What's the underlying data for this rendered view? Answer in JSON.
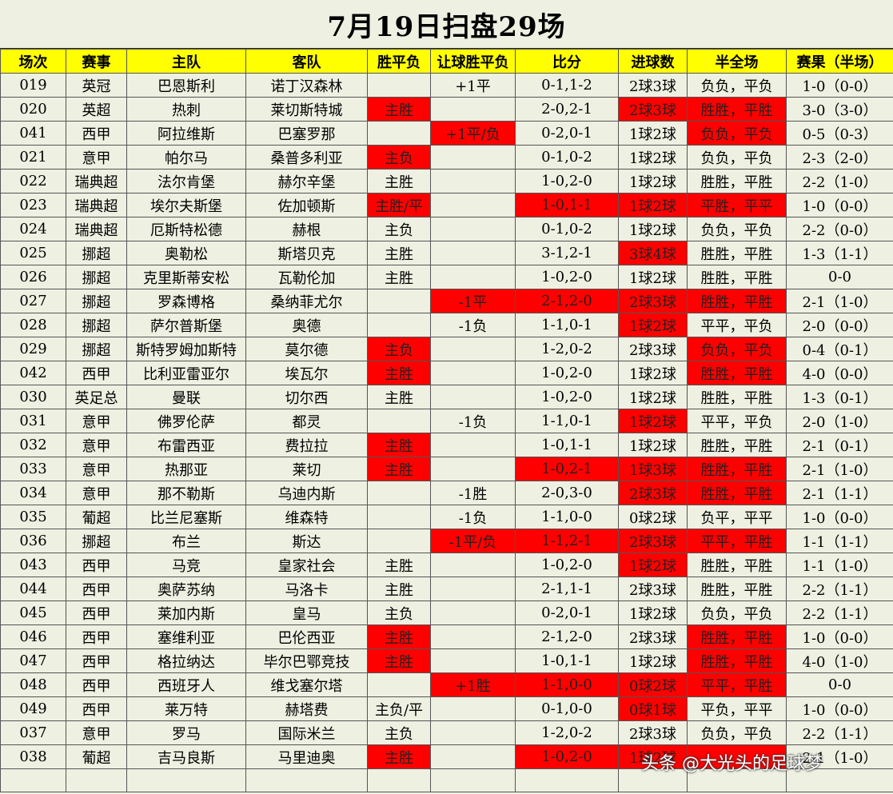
{
  "title": "7月19日扫盘29场",
  "headers": [
    "场次",
    "赛事",
    "主队",
    "客队",
    "胜平负",
    "让球胜平负",
    "比分",
    "进球数",
    "半全场",
    "赛果（半场）"
  ],
  "rows": [
    {
      "cells": [
        "019",
        "英冠",
        "巴恩斯利",
        "诺丁汉森林",
        "",
        "+1平",
        "0-1,1-2",
        "2球3球",
        "负负，平负",
        "1-0（0-0）"
      ],
      "red": []
    },
    {
      "cells": [
        "020",
        "英超",
        "热刺",
        "莱切斯特城",
        "主胜",
        "",
        "2-0,2-1",
        "2球3球",
        "胜胜，平胜",
        "3-0（3-0）"
      ],
      "red": [
        4,
        7,
        8
      ]
    },
    {
      "cells": [
        "041",
        "西甲",
        "阿拉维斯",
        "巴塞罗那",
        "",
        "+1平/负",
        "0-2,0-1",
        "1球2球",
        "负负，平负",
        "0-5（0-3）"
      ],
      "red": [
        5,
        8
      ]
    },
    {
      "cells": [
        "021",
        "意甲",
        "帕尔马",
        "桑普多利亚",
        "主负",
        "",
        "0-1,0-2",
        "1球2球",
        "负负，平负",
        "2-3（2-0）"
      ],
      "red": [
        4
      ]
    },
    {
      "cells": [
        "022",
        "瑞典超",
        "法尔肯堡",
        "赫尔辛堡",
        "主胜",
        "",
        "1-0,2-0",
        "1球2球",
        "胜胜，平胜",
        "2-2（1-0）"
      ],
      "red": []
    },
    {
      "cells": [
        "023",
        "瑞典超",
        "埃尔夫斯堡",
        "佐加顿斯",
        "主胜/平",
        "",
        "1-0,1-1",
        "1球2球",
        "平胜，平平",
        "1-0（0-0）"
      ],
      "red": [
        4,
        6,
        7,
        8
      ]
    },
    {
      "cells": [
        "024",
        "瑞典超",
        "厄斯特松德",
        "赫根",
        "主负",
        "",
        "0-1,0-2",
        "1球2球",
        "负负，平负",
        "2-2（0-0）"
      ],
      "red": []
    },
    {
      "cells": [
        "025",
        "挪超",
        "奥勒松",
        "斯塔贝克",
        "主胜",
        "",
        "3-1,2-1",
        "3球4球",
        "胜胜，平胜",
        "1-3（1-1）"
      ],
      "red": [
        7
      ]
    },
    {
      "cells": [
        "026",
        "挪超",
        "克里斯蒂安松",
        "瓦勒伦加",
        "主胜",
        "",
        "1-0,2-0",
        "1球2球",
        "胜胜，平胜",
        "0-0"
      ],
      "red": []
    },
    {
      "cells": [
        "027",
        "挪超",
        "罗森博格",
        "桑纳菲尤尔",
        "",
        "-1平",
        "2-1,2-0",
        "2球3球",
        "胜胜，平胜",
        "2-1（1-0）"
      ],
      "red": [
        5,
        6,
        7,
        8
      ]
    },
    {
      "cells": [
        "028",
        "挪超",
        "萨尔普斯堡",
        "奥德",
        "",
        "-1负",
        "1-1,0-1",
        "1球2球",
        "平平，平负",
        "2-0（0-0）"
      ],
      "red": [
        7
      ]
    },
    {
      "cells": [
        "029",
        "挪超",
        "斯特罗姆加斯特",
        "莫尔德",
        "主负",
        "",
        "1-2,0-2",
        "2球3球",
        "负负，平负",
        "0-4（0-1）"
      ],
      "red": [
        4,
        8
      ]
    },
    {
      "cells": [
        "042",
        "西甲",
        "比利亚雷亚尔",
        "埃瓦尔",
        "主胜",
        "",
        "1-0,2-0",
        "1球2球",
        "胜胜，平胜",
        "4-0（0-0）"
      ],
      "red": [
        4,
        8
      ]
    },
    {
      "cells": [
        "030",
        "英足总",
        "曼联",
        "切尔西",
        "主胜",
        "",
        "1-0,2-0",
        "1球2球",
        "胜胜，平胜",
        "1-3（0-1）"
      ],
      "red": []
    },
    {
      "cells": [
        "031",
        "意甲",
        "佛罗伦萨",
        "都灵",
        "",
        "-1负",
        "1-1,0-1",
        "1球2球",
        "平平，平负",
        "2-0（1-0）"
      ],
      "red": [
        7
      ]
    },
    {
      "cells": [
        "032",
        "意甲",
        "布雷西亚",
        "费拉拉",
        "主胜",
        "",
        "1-0,1-1",
        "1球2球",
        "胜胜，平胜",
        "2-1（0-1）"
      ],
      "red": [
        4
      ]
    },
    {
      "cells": [
        "033",
        "意甲",
        "热那亚",
        "莱切",
        "主胜",
        "",
        "1-0,2-1",
        "1球3球",
        "胜胜，平胜",
        "2-1（1-0）"
      ],
      "red": [
        4,
        6,
        7,
        8
      ]
    },
    {
      "cells": [
        "034",
        "意甲",
        "那不勒斯",
        "乌迪内斯",
        "",
        "-1胜",
        "2-0,3-0",
        "2球3球",
        "胜胜，平胜",
        "2-1（1-1）"
      ],
      "red": [
        7,
        8
      ]
    },
    {
      "cells": [
        "035",
        "葡超",
        "比兰尼塞斯",
        "维森特",
        "",
        "-1负",
        "1-1,0-0",
        "0球2球",
        "负平，平平",
        "1-0（0-0）"
      ],
      "red": []
    },
    {
      "cells": [
        "036",
        "挪超",
        "布兰",
        "斯达",
        "",
        "-1平/负",
        "1-1,2-1",
        "2球3球",
        "平平，平胜",
        "1-1（1-1）"
      ],
      "red": [
        5,
        6,
        7,
        8
      ]
    },
    {
      "cells": [
        "043",
        "西甲",
        "马竞",
        "皇家社会",
        "主胜",
        "",
        "1-0,2-0",
        "1球2球",
        "胜胜，平胜",
        "1-1（1-0）"
      ],
      "red": [
        7
      ]
    },
    {
      "cells": [
        "044",
        "西甲",
        "奥萨苏纳",
        "马洛卡",
        "主胜",
        "",
        "2-1,1-1",
        "2球3球",
        "胜胜，平胜",
        "2-2（1-1）"
      ],
      "red": []
    },
    {
      "cells": [
        "045",
        "西甲",
        "莱加内斯",
        "皇马",
        "主负",
        "",
        "0-2,0-1",
        "1球2球",
        "负负，平负",
        "2-2（1-1）"
      ],
      "red": []
    },
    {
      "cells": [
        "046",
        "西甲",
        "塞维利亚",
        "巴伦西亚",
        "主胜",
        "",
        "2-1,2-0",
        "2球3球",
        "胜胜，平胜",
        "1-0（0-0）"
      ],
      "red": [
        4,
        8
      ]
    },
    {
      "cells": [
        "047",
        "西甲",
        "格拉纳达",
        "毕尔巴鄂竞技",
        "主胜",
        "",
        "1-0,1-1",
        "1球2球",
        "胜胜，平胜",
        "4-0（1-0）"
      ],
      "red": [
        4,
        8
      ]
    },
    {
      "cells": [
        "048",
        "西甲",
        "西班牙人",
        "维戈塞尔塔",
        "",
        "+1胜",
        "1-1,0-0",
        "0球2球",
        "平平，平胜",
        "0-0"
      ],
      "red": [
        5,
        6,
        7,
        8
      ]
    },
    {
      "cells": [
        "049",
        "西甲",
        "莱万特",
        "赫塔费",
        "主负/平",
        "",
        "0-1,0-0",
        "0球1球",
        "平负，平平",
        "1-0（0-0）"
      ],
      "red": [
        7
      ]
    },
    {
      "cells": [
        "037",
        "意甲",
        "罗马",
        "国际米兰",
        "主负",
        "",
        "1-2,0-2",
        "2球3球",
        "负负，平负",
        "2-2（1-1）"
      ],
      "red": []
    },
    {
      "cells": [
        "038",
        "葡超",
        "吉马良斯",
        "马里迪奥",
        "主胜",
        "",
        "1-0,2-0",
        "1球2球",
        "",
        "2-1（1-0）"
      ],
      "red": [
        4,
        6,
        7,
        8
      ]
    }
  ],
  "watermark": "头条 @大光头的足球梦"
}
